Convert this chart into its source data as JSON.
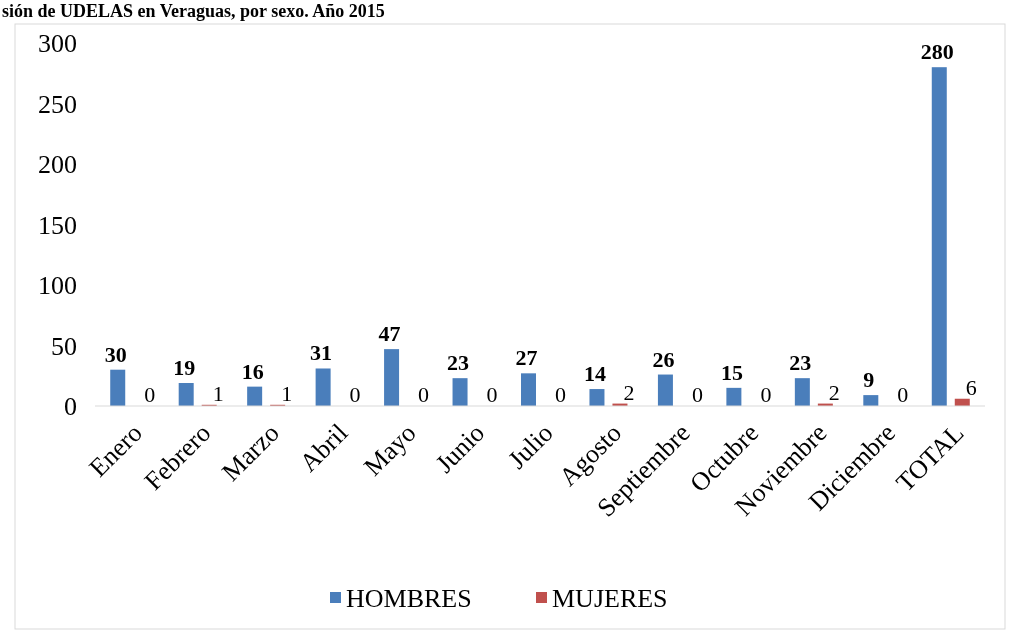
{
  "chart_data": {
    "type": "bar",
    "title": "sión de UDELAS en Veraguas, por sexo. Año 2015",
    "categories": [
      "Enero",
      "Febrero",
      "Marzo",
      "Abril",
      "Mayo",
      "Junio",
      "Julio",
      "Agosto",
      "Septiembre",
      "Octubre",
      "Noviembre",
      "Diciembre",
      "TOTAL"
    ],
    "series": [
      {
        "name": "HOMBRES",
        "color": "#4a7ebb",
        "values": [
          30,
          19,
          16,
          31,
          47,
          23,
          27,
          14,
          26,
          15,
          23,
          9,
          280
        ]
      },
      {
        "name": "MUJERES",
        "color": "#c0504d",
        "values": [
          0,
          1,
          1,
          0,
          0,
          0,
          0,
          2,
          0,
          0,
          2,
          0,
          6
        ]
      }
    ],
    "ylim": [
      0,
      300
    ],
    "yticks": [
      0,
      50,
      100,
      150,
      200,
      250,
      300
    ],
    "grid": false,
    "legend": "bottom",
    "data_labels": true
  }
}
